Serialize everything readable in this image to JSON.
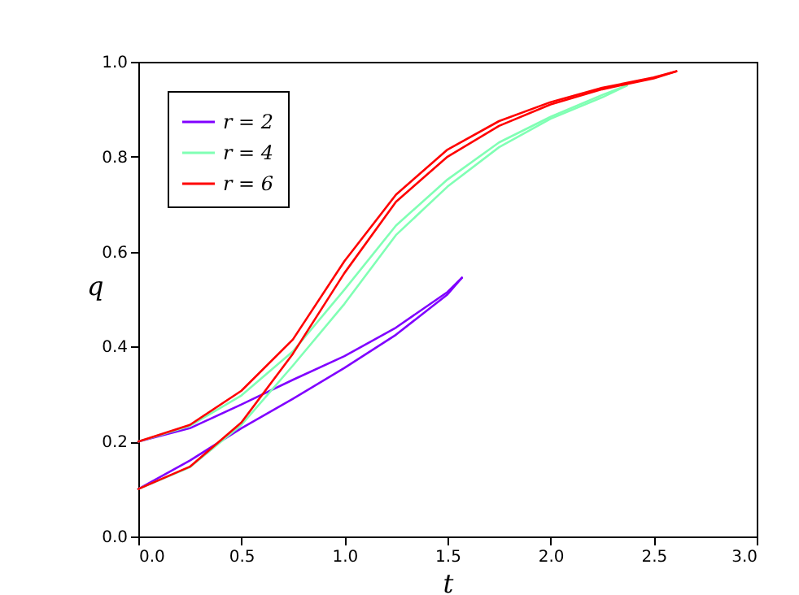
{
  "chart_data": {
    "type": "line",
    "xlabel": "t",
    "ylabel": "q",
    "xlim": [
      0,
      3
    ],
    "ylim": [
      0,
      1
    ],
    "xticks": [
      {
        "value": 0,
        "label": "0.0"
      },
      0.5,
      {
        "value": 1,
        "label": "1.0"
      },
      1.5,
      {
        "value": 2,
        "label": "2.0"
      },
      2.5,
      {
        "value": 3,
        "label": "3.0"
      }
    ],
    "yticks": [
      {
        "value": 0,
        "label": "0.0"
      },
      0.2,
      0.4,
      0.6,
      0.8,
      {
        "value": 1,
        "label": "1.0"
      }
    ],
    "grid": false,
    "legend": "top left",
    "marker": "none",
    "line_style": "solid",
    "series": [
      {
        "name": "r = 2",
        "color": "#8000ff",
        "x": [
          0,
          0.25,
          0.5,
          0.75,
          1.0,
          1.25,
          1.5,
          1.57
        ],
        "values": [
          0.2,
          0.228,
          0.278,
          0.33,
          0.38,
          0.44,
          0.515,
          0.545
        ]
      },
      {
        "color": "#8000ff",
        "x": [
          0,
          0.25,
          0.5,
          0.75,
          1.0,
          1.25,
          1.5,
          1.57
        ],
        "values": [
          0.1,
          0.16,
          0.228,
          0.29,
          0.355,
          0.425,
          0.51,
          0.545
        ]
      },
      {
        "name": "r = 4",
        "color": "#80ffb4",
        "x": [
          0,
          0.25,
          0.5,
          0.75,
          1.0,
          1.25,
          1.5,
          1.75,
          2.0,
          2.25,
          2.37
        ],
        "values": [
          0.2,
          0.233,
          0.297,
          0.39,
          0.52,
          0.655,
          0.752,
          0.83,
          0.884,
          0.93,
          0.95
        ]
      },
      {
        "color": "#80ffb4",
        "x": [
          0,
          0.25,
          0.5,
          0.75,
          1.0,
          1.25,
          1.5,
          1.75,
          2.0,
          2.25,
          2.37
        ],
        "values": [
          0.1,
          0.146,
          0.235,
          0.36,
          0.49,
          0.635,
          0.737,
          0.82,
          0.88,
          0.925,
          0.95
        ]
      },
      {
        "name": "r = 6",
        "color": "#ff0000",
        "x": [
          0,
          0.25,
          0.5,
          0.75,
          1.0,
          1.25,
          1.5,
          1.75,
          2.0,
          2.25,
          2.5,
          2.61
        ],
        "values": [
          0.2,
          0.235,
          0.307,
          0.415,
          0.58,
          0.72,
          0.815,
          0.875,
          0.915,
          0.945,
          0.967,
          0.98
        ]
      },
      {
        "color": "#ff0000",
        "x": [
          0,
          0.25,
          0.5,
          0.75,
          1.0,
          1.25,
          1.5,
          1.75,
          2.0,
          2.25,
          2.5,
          2.61
        ],
        "values": [
          0.1,
          0.147,
          0.24,
          0.385,
          0.555,
          0.705,
          0.8,
          0.865,
          0.91,
          0.942,
          0.965,
          0.98
        ]
      }
    ]
  }
}
